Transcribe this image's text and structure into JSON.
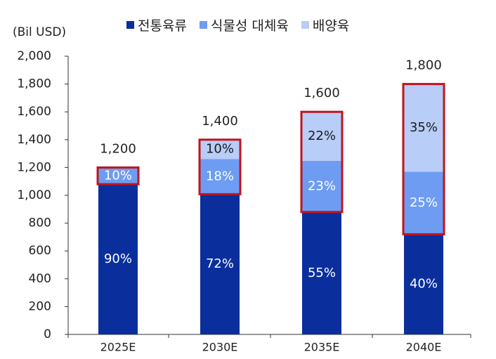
{
  "chart_data": {
    "type": "bar",
    "stacked": true,
    "unit_label": "(Bil USD)",
    "categories": [
      "2025E",
      "2030E",
      "2035E",
      "2040E"
    ],
    "totals": [
      1200,
      1400,
      1600,
      1800
    ],
    "total_labels": [
      "1,200",
      "1,400",
      "1,600",
      "1,800"
    ],
    "ylim": [
      0,
      2000
    ],
    "yticks": [
      0,
      200,
      400,
      600,
      800,
      1000,
      1200,
      1400,
      1600,
      1800,
      2000
    ],
    "ytick_labels": [
      "0",
      "200",
      "400",
      "600",
      "800",
      "1,000",
      "1,200",
      "1,400",
      "1,600",
      "1,800",
      "2,000"
    ],
    "series": [
      {
        "name": "전통육류",
        "color": "#0a2f9c",
        "share": [
          90,
          72,
          55,
          40
        ],
        "labels": [
          "90%",
          "72%",
          "55%",
          "40%"
        ]
      },
      {
        "name": "식물성 대체육",
        "color": "#6e9cf3",
        "share": [
          10,
          18,
          23,
          25
        ],
        "labels": [
          "10%",
          "18%",
          "23%",
          "25%"
        ]
      },
      {
        "name": "배양육",
        "color": "#b8cdf7",
        "share": [
          0,
          10,
          22,
          35
        ],
        "labels": [
          "",
          "10%",
          "22%",
          "35%"
        ]
      }
    ],
    "highlight_color": "#c0141e",
    "legend_position": "top",
    "grid": false
  }
}
